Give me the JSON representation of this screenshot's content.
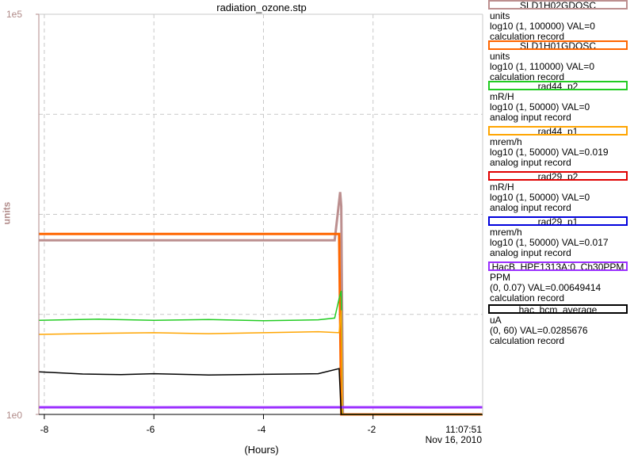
{
  "title": "radiation_ozone.stp",
  "time_label": "11:07:51",
  "date_label": "Nov 16, 2010",
  "legend": [
    {
      "name": "SLD1H02GDOSC",
      "unit": "units",
      "range": "log10 (1, 100000) VAL=0",
      "desc": "calculation record",
      "color": "#bc8f8f"
    },
    {
      "name": "SLD1H01GDOSC",
      "unit": "units",
      "range": "log10 (1, 110000) VAL=0",
      "desc": "calculation record",
      "color": "#ff6600"
    },
    {
      "name": "rad44_p2",
      "unit": "mR/H",
      "range": "log10 (1, 50000) VAL=0",
      "desc": "analog input record",
      "color": "#22cc22"
    },
    {
      "name": "rad44_p1",
      "unit": "mrem/h",
      "range": "log10 (1, 50000) VAL=0.019",
      "desc": "analog input record",
      "color": "#ffa500"
    },
    {
      "name": "rad29_p2",
      "unit": "mR/H",
      "range": "log10 (1, 50000) VAL=0",
      "desc": "analog input record",
      "color": "#e00000"
    },
    {
      "name": "rad29_p1",
      "unit": "mrem/h",
      "range": "log10 (1, 50000) VAL=0.017",
      "desc": "analog input record",
      "color": "#0000dd"
    },
    {
      "name": "HacB_HPE1313A:0_Ch30PPM",
      "unit": "PPM",
      "range": "(0, 0.07) VAL=0.00649414",
      "desc": "calculation record",
      "color": "#9b30ff"
    },
    {
      "name": "hac_bcm_average",
      "unit": "uA",
      "range": "(0, 60) VAL=0.0285676",
      "desc": "calculation record",
      "color": "#000000"
    }
  ],
  "chart_data": {
    "type": "line",
    "xlabel": "(Hours)",
    "ylabel": "units",
    "xlim": [
      -8.1,
      0
    ],
    "ylim_log10": [
      0,
      5
    ],
    "y_scale": "log",
    "ytick_labels": [
      "1e0",
      "1e5"
    ],
    "xtick_values": [
      -8,
      -6,
      -4,
      -2
    ],
    "xtick_labels": [
      "-8",
      "-6",
      "-4",
      "-2"
    ],
    "grid": true,
    "legend_placement": "right",
    "series": [
      {
        "name": "SLD1H02GDOSC",
        "color": "#bc8f8f",
        "x": [
          -8.1,
          -7.3,
          -7.2,
          -7.0,
          -6.0,
          -4.0,
          -3.5,
          -2.7,
          -2.65,
          -2.6,
          -2.58,
          -2.55,
          0
        ],
        "y": [
          150,
          150,
          150,
          150,
          150,
          150,
          150,
          150,
          300,
          600,
          400,
          1,
          1
        ]
      },
      {
        "name": "SLD1H01GDOSC",
        "color": "#ff6600",
        "x": [
          -8.1,
          -7.3,
          -6.0,
          -4.0,
          -3.5,
          -3.0,
          -2.62,
          -2.58,
          0
        ],
        "y": [
          180,
          180,
          180,
          180,
          180,
          180,
          180,
          1,
          1
        ]
      },
      {
        "name": "rad44_p2",
        "color": "#22cc22",
        "x": [
          -8.1,
          -7.0,
          -6.0,
          -5.0,
          -4.0,
          -3.0,
          -2.7,
          -2.62,
          -2.58,
          -2.56,
          0
        ],
        "y": [
          15,
          15.5,
          15,
          15.3,
          14.8,
          15.2,
          16,
          28,
          35,
          0,
          0
        ]
      },
      {
        "name": "rad44_p1",
        "color": "#ffa500",
        "x": [
          -8.1,
          -7.0,
          -6.0,
          -5.0,
          -4.0,
          -3.0,
          -2.62,
          -2.58,
          -2.56,
          0
        ],
        "y": [
          10,
          10.3,
          10.5,
          10.2,
          10.5,
          10.8,
          10.5,
          20,
          0,
          0
        ]
      },
      {
        "name": "HacB_HPE1313A:0_Ch30PPM",
        "color": "#9b30ff",
        "x": [
          -8.1,
          -7.0,
          -6.0,
          -5.0,
          -4.0,
          -3.0,
          -2.0,
          -1.0,
          0
        ],
        "y": [
          0.0065,
          0.0065,
          0.0064,
          0.0065,
          0.0064,
          0.0065,
          0.0065,
          0.0064,
          0.0065
        ]
      },
      {
        "name": "hac_bcm_average",
        "color": "#000000",
        "x": [
          -8.1,
          -7.3,
          -6.6,
          -6.0,
          -5.0,
          -4.0,
          -3.0,
          -2.62,
          -2.58,
          0
        ],
        "y": [
          13.5,
          12.8,
          12.6,
          12.9,
          12.5,
          12.7,
          12.9,
          14.5,
          0,
          0
        ]
      }
    ]
  }
}
